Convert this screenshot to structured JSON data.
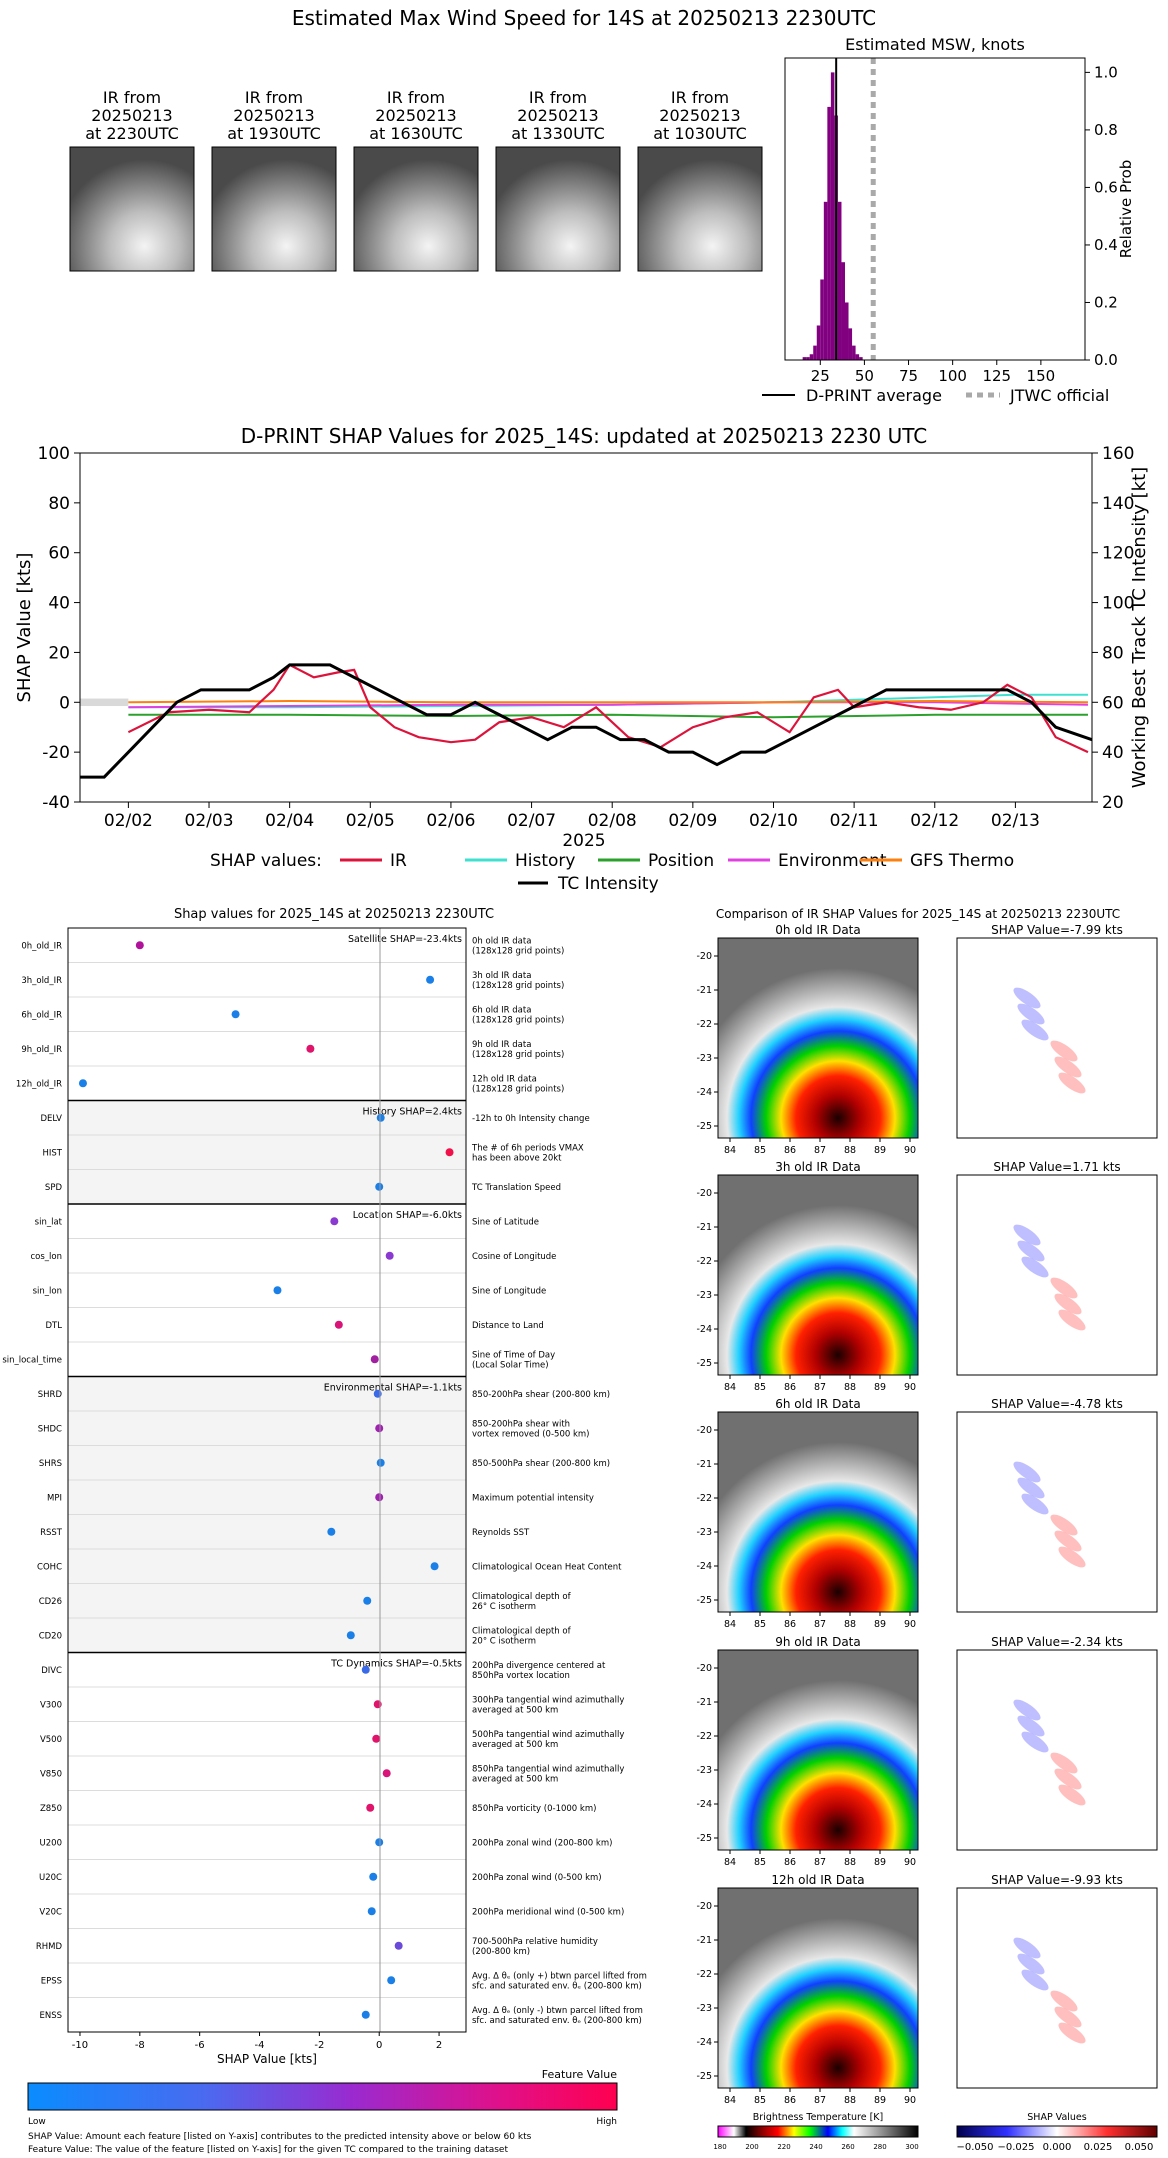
{
  "main_title": "Estimated Max Wind Speed for 14S at 20250213 2230UTC",
  "ir_thumbnails": [
    {
      "line1": "IR from",
      "line2": "20250213",
      "line3": "at 2230UTC"
    },
    {
      "line1": "IR from",
      "line2": "20250213",
      "line3": "at 1930UTC"
    },
    {
      "line1": "IR from",
      "line2": "20250213",
      "line3": "at 1630UTC"
    },
    {
      "line1": "IR from",
      "line2": "20250213",
      "line3": "at 1330UTC"
    },
    {
      "line1": "IR from",
      "line2": "20250213",
      "line3": "at 1030UTC"
    }
  ],
  "colors": {
    "dprint": "#000000",
    "jtwc": "#a9a9a9",
    "hist_bar": "#800080",
    "ir": "#dc143c",
    "history": "#40e0d0",
    "position": "#2ca02c",
    "environment": "#e040e0",
    "gfs": "#ff7f0e",
    "tc": "#000000",
    "shap_pos": "#ff0000",
    "shap_neg": "#0000ff"
  },
  "chart_data": [
    {
      "type": "bar",
      "title": "Estimated MSW, knots",
      "ylabel": "Relative Prob",
      "xlim": [
        5,
        175
      ],
      "ylim": [
        0,
        1.05
      ],
      "x_ticks": [
        "25",
        "50",
        "75",
        "100",
        "125",
        "150"
      ],
      "y_ticks": [
        "0.0",
        "0.2",
        "0.4",
        "0.6",
        "0.8",
        "1.0"
      ],
      "bins_x": [
        16,
        18,
        20,
        22,
        24,
        26,
        28,
        30,
        32,
        34,
        36,
        38,
        40,
        42,
        44,
        46,
        48
      ],
      "values": [
        0.01,
        0.01,
        0.02,
        0.05,
        0.12,
        0.28,
        0.55,
        0.88,
        1.0,
        0.85,
        0.55,
        0.34,
        0.2,
        0.11,
        0.05,
        0.02,
        0.01
      ],
      "dprint_average": 34,
      "jtwc_official": 55,
      "legend": [
        "D-PRINT average",
        "JTWC official"
      ]
    },
    {
      "type": "line",
      "title": "D-PRINT SHAP Values for 2025_14S: updated at 20250213 2230 UTC",
      "xlabel": "2025",
      "ylabel": "SHAP Value [kts]",
      "y2label": "Working Best Track TC Intensity [kt]",
      "ylim": [
        -40,
        100
      ],
      "y2lim": [
        20,
        160
      ],
      "xlim": [
        1.4,
        13.95
      ],
      "x_ticks": [
        "02/02",
        "02/03",
        "02/04",
        "02/05",
        "02/06",
        "02/07",
        "02/08",
        "02/09",
        "02/10",
        "02/11",
        "02/12",
        "02/13"
      ],
      "y_ticks": [
        "-40",
        "-20",
        "0",
        "20",
        "40",
        "60",
        "80",
        "100"
      ],
      "y2_ticks": [
        "20",
        "40",
        "60",
        "80",
        "100",
        "120",
        "140",
        "160"
      ],
      "legend_label": "SHAP values:",
      "series": [
        {
          "name": "IR",
          "key": "ir",
          "x": [
            2.0,
            2.5,
            3.0,
            3.5,
            3.8,
            4.0,
            4.3,
            4.6,
            4.8,
            5.0,
            5.3,
            5.6,
            6.0,
            6.3,
            6.6,
            7.0,
            7.4,
            7.8,
            8.2,
            8.6,
            9.0,
            9.4,
            9.8,
            10.2,
            10.5,
            10.8,
            11.0,
            11.4,
            11.8,
            12.2,
            12.6,
            12.9,
            13.2,
            13.5,
            13.9
          ],
          "y": [
            -12,
            -4,
            -3,
            -4,
            5,
            15,
            10,
            12,
            13,
            -2,
            -10,
            -14,
            -16,
            -15,
            -8,
            -6,
            -10,
            -2,
            -14,
            -18,
            -10,
            -6,
            -4,
            -12,
            2,
            5,
            -2,
            0,
            -2,
            -3,
            0,
            7,
            2,
            -14,
            -20
          ]
        },
        {
          "name": "History",
          "key": "history",
          "x": [
            2.0,
            4,
            6,
            8,
            10,
            11,
            12,
            13,
            13.9
          ],
          "y": [
            -2,
            -2,
            -1.5,
            -1,
            0,
            1,
            2,
            3,
            3
          ]
        },
        {
          "name": "Position",
          "key": "position",
          "x": [
            2.0,
            4,
            6,
            8,
            10,
            12,
            13.9
          ],
          "y": [
            -5,
            -5,
            -5.5,
            -5,
            -6,
            -5,
            -5
          ]
        },
        {
          "name": "Environment",
          "key": "environment",
          "x": [
            2.0,
            4,
            6,
            8,
            10,
            12,
            13.9
          ],
          "y": [
            -2,
            -1.5,
            -1,
            -1,
            0,
            0,
            -1
          ]
        },
        {
          "name": "GFS Thermo",
          "key": "gfs",
          "x": [
            2.0,
            4,
            6,
            8,
            10,
            12,
            13.9
          ],
          "y": [
            0,
            0.5,
            0,
            0,
            0,
            0.5,
            0
          ]
        },
        {
          "name": "TC Intensity",
          "key": "tc",
          "axis": "right",
          "x": [
            1.4,
            1.7,
            2.0,
            2.3,
            2.6,
            2.9,
            3.5,
            3.8,
            4.0,
            4.5,
            4.8,
            5.1,
            5.4,
            5.7,
            6.0,
            6.3,
            6.6,
            6.9,
            7.2,
            7.5,
            7.8,
            8.1,
            8.4,
            8.7,
            9.0,
            9.3,
            9.6,
            9.9,
            10.2,
            10.5,
            10.8,
            11.1,
            11.4,
            11.7,
            12.0,
            12.3,
            12.6,
            12.9,
            13.2,
            13.5,
            13.95
          ],
          "y": [
            30,
            30,
            40,
            50,
            60,
            65,
            65,
            70,
            75,
            75,
            70,
            65,
            60,
            55,
            55,
            60,
            55,
            50,
            45,
            50,
            50,
            45,
            45,
            40,
            40,
            35,
            40,
            40,
            45,
            50,
            55,
            60,
            65,
            65,
            65,
            65,
            65,
            65,
            60,
            50,
            45
          ]
        }
      ]
    }
  ],
  "shap_panel": {
    "title": "Shap values for 2025_14S at 20250213 2230UTC",
    "xlabel": "SHAP Value [kts]",
    "x_ticks": [
      "-10",
      "-8",
      "-6",
      "-4",
      "-2",
      "0",
      "2"
    ],
    "groups": [
      {
        "label": "Satellite SHAP=-23.4kts",
        "shaded": false,
        "rows": [
          {
            "name": "0h_old_IR",
            "desc1": "0h old IR data",
            "desc2": "(128x128 grid points)",
            "value": -8.0,
            "color": "#b0129a"
          },
          {
            "name": "3h_old_IR",
            "desc1": "3h old IR data",
            "desc2": "(128x128 grid points)",
            "value": 1.7,
            "color": "#1a7fe6"
          },
          {
            "name": "6h_old_IR",
            "desc1": "6h old IR data",
            "desc2": "(128x128 grid points)",
            "value": -4.8,
            "color": "#1a7fe6"
          },
          {
            "name": "9h_old_IR",
            "desc1": "9h old IR data",
            "desc2": "(128x128 grid points)",
            "value": -2.3,
            "color": "#e0146a"
          },
          {
            "name": "12h_old_IR",
            "desc1": "12h old IR data",
            "desc2": "(128x128 grid points)",
            "value": -9.9,
            "color": "#1a7fe6"
          }
        ]
      },
      {
        "label": "History SHAP=2.4kts",
        "shaded": true,
        "rows": [
          {
            "name": "DELV",
            "desc1": "-12h to 0h Intensity change",
            "desc2": "",
            "value": 0.05,
            "color": "#1a7fe6"
          },
          {
            "name": "HIST",
            "desc1": "The # of 6h periods VMAX",
            "desc2": "has been above 20kt",
            "value": 2.35,
            "color": "#f0104a"
          },
          {
            "name": "SPD",
            "desc1": "TC Translation Speed",
            "desc2": "",
            "value": 0.0,
            "color": "#1a7fe6"
          }
        ]
      },
      {
        "label": "Location SHAP=-6.0kts",
        "shaded": false,
        "rows": [
          {
            "name": "sin_lat",
            "desc1": "Sine of Latitude",
            "desc2": "",
            "value": -1.5,
            "color": "#8a3ad0"
          },
          {
            "name": "cos_lon",
            "desc1": "Cosine of Longitude",
            "desc2": "",
            "value": 0.35,
            "color": "#8a3ad0"
          },
          {
            "name": "sin_lon",
            "desc1": "Sine of Longitude",
            "desc2": "",
            "value": -3.4,
            "color": "#1a7fe6"
          },
          {
            "name": "DTL",
            "desc1": "Distance to Land",
            "desc2": "",
            "value": -1.35,
            "color": "#d81478"
          },
          {
            "name": "sin_local_time",
            "desc1": "Sine of Time of Day",
            "desc2": "(Local Solar Time)",
            "value": -0.15,
            "color": "#a020a0"
          }
        ]
      },
      {
        "label": "Environmental SHAP=-1.1kts",
        "shaded": true,
        "rows": [
          {
            "name": "SHRD",
            "desc1": "850-200hPa shear (200-800 km)",
            "desc2": "",
            "value": -0.05,
            "color": "#3a6ae8"
          },
          {
            "name": "SHDC",
            "desc1": "850-200hPa shear with",
            "desc2": "vortex removed (0-500 km)",
            "value": 0.0,
            "color": "#a020b0"
          },
          {
            "name": "SHRS",
            "desc1": "850-500hPa shear (200-800 km)",
            "desc2": "",
            "value": 0.05,
            "color": "#1a7fe6"
          },
          {
            "name": "MPI",
            "desc1": "Maximum potential intensity",
            "desc2": "",
            "value": 0.0,
            "color": "#a020b0"
          },
          {
            "name": "RSST",
            "desc1": "Reynolds SST",
            "desc2": "",
            "value": -1.6,
            "color": "#1a7fe6"
          },
          {
            "name": "COHC",
            "desc1": "Climatological Ocean Heat Content",
            "desc2": "",
            "value": 1.85,
            "color": "#1a7fe6"
          },
          {
            "name": "CD26",
            "desc1": "Climatological depth of",
            "desc2": "26° C isotherm",
            "value": -0.4,
            "color": "#1a7fe6"
          },
          {
            "name": "CD20",
            "desc1": "Climatological depth of",
            "desc2": "20° C isotherm",
            "value": -0.95,
            "color": "#1a7fe6"
          }
        ]
      },
      {
        "label": "TC Dynamics SHAP=-0.5kts",
        "shaded": false,
        "rows": [
          {
            "name": "DIVC",
            "desc1": "200hPa divergence centered at",
            "desc2": "850hPa vortex location",
            "value": -0.45,
            "color": "#3a6ae8"
          },
          {
            "name": "V300",
            "desc1": "300hPa tangential wind azimuthally",
            "desc2": "averaged at 500 km",
            "value": -0.05,
            "color": "#e0146a"
          },
          {
            "name": "V500",
            "desc1": "500hPa tangential wind azimuthally",
            "desc2": "averaged at 500 km",
            "value": -0.1,
            "color": "#e0146a"
          },
          {
            "name": "V850",
            "desc1": "850hPa tangential wind azimuthally",
            "desc2": "averaged at 500 km",
            "value": 0.25,
            "color": "#d81478"
          },
          {
            "name": "Z850",
            "desc1": "850hPa vorticity (0-1000 km)",
            "desc2": "",
            "value": -0.3,
            "color": "#e0146a"
          },
          {
            "name": "U200",
            "desc1": "200hPa zonal wind (200-800 km)",
            "desc2": "",
            "value": 0.0,
            "color": "#1a7fe6"
          },
          {
            "name": "U20C",
            "desc1": "200hPa zonal wind (0-500 km)",
            "desc2": "",
            "value": -0.2,
            "color": "#1a7fe6"
          },
          {
            "name": "V20C",
            "desc1": "200hPa meridional wind (0-500 km)",
            "desc2": "",
            "value": -0.25,
            "color": "#1a7fe6"
          },
          {
            "name": "RHMD",
            "desc1": "700-500hPa relative humidity",
            "desc2": "(200-800 km)",
            "value": 0.65,
            "color": "#6a4ad8"
          },
          {
            "name": "EPSS",
            "desc1": "Avg. Δ θₑ (only +) btwn parcel lifted from",
            "desc2": "sfc. and saturated env. θₑ (200-800 km)",
            "value": 0.4,
            "color": "#1a7fe6"
          },
          {
            "name": "ENSS",
            "desc1": "Avg. Δ θₑ (only -) btwn parcel lifted from",
            "desc2": "sfc. and saturated env. θₑ (200-800 km)",
            "value": -0.45,
            "color": "#1a7fe6"
          }
        ]
      }
    ],
    "colorbar": {
      "title": "Feature Value",
      "low": "Low",
      "high": "High"
    },
    "footnote1": "SHAP Value: Amount each feature [listed on Y-axis] contributes to the predicted intensity above or below 60 kts",
    "footnote2": "Feature Value: The value of the feature [listed on Y-axis] for the given TC compared to the training dataset"
  },
  "ir_compare": {
    "title": "Comparison of IR SHAP Values for 2025_14S at 20250213 2230UTC",
    "x_ticks": [
      "84",
      "85",
      "86",
      "87",
      "88",
      "89",
      "90"
    ],
    "y_ticks": [
      "-20",
      "-21",
      "-22",
      "-23",
      "-24",
      "-25"
    ],
    "panels": [
      {
        "ir_title": "0h old IR Data",
        "shap_title": "SHAP Value=-7.99 kts"
      },
      {
        "ir_title": "3h old IR Data",
        "shap_title": "SHAP Value=1.71 kts"
      },
      {
        "ir_title": "6h old IR Data",
        "shap_title": "SHAP Value=-4.78 kts"
      },
      {
        "ir_title": "9h old IR Data",
        "shap_title": "SHAP Value=-2.34 kts"
      },
      {
        "ir_title": "12h old IR Data",
        "shap_title": "SHAP Value=-9.93 kts"
      }
    ],
    "bt_colorbar": {
      "title": "Brightness Temperature [K]",
      "ticks": [
        "180",
        "200",
        "220",
        "240",
        "260",
        "280",
        "300"
      ]
    },
    "shap_colorbar": {
      "title": "SHAP Values",
      "ticks": [
        "−0.050",
        "−0.025",
        "0.000",
        "0.025",
        "0.050"
      ]
    }
  }
}
